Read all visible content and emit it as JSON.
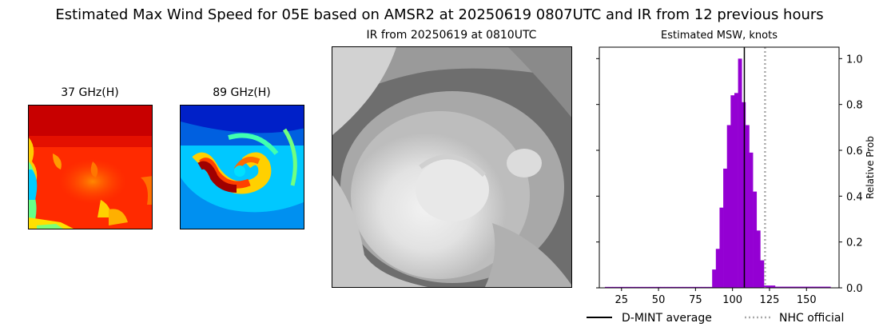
{
  "main_title": "Estimated Max Wind Speed for 05E based on AMSR2 at 20250619 0807UTC and IR from 12 previous hours",
  "panels": {
    "ghz37_title": "37 GHz(H)",
    "ghz89_title": "89 GHz(H)",
    "ir_title": "IR from 20250619 at 0810UTC"
  },
  "colors": {
    "bar": "#9400D3",
    "mean_line": "#000000",
    "nhc_line": "#a9a9a9"
  },
  "chart_data": {
    "type": "bar",
    "title": "Estimated MSW, knots",
    "ylabel": "Relative Prob",
    "xlim": [
      10,
      172
    ],
    "ylim": [
      0,
      1.05
    ],
    "xticks": [
      25,
      50,
      75,
      100,
      125,
      150
    ],
    "yticks": [
      0.0,
      0.2,
      0.4,
      0.6,
      0.8,
      1.0
    ],
    "ytick_labels": [
      "0.0",
      "0.2",
      "0.4",
      "0.6",
      "0.8",
      "1.0"
    ],
    "yaxis_position": "right",
    "bin_width": 2.5,
    "bins": [
      {
        "x": 15.0,
        "value": 0.004
      },
      {
        "x": 17.5,
        "value": 0.004
      },
      {
        "x": 20.0,
        "value": 0.004
      },
      {
        "x": 22.5,
        "value": 0.004
      },
      {
        "x": 25.0,
        "value": 0.004
      },
      {
        "x": 27.5,
        "value": 0.004
      },
      {
        "x": 30.0,
        "value": 0.004
      },
      {
        "x": 32.5,
        "value": 0.004
      },
      {
        "x": 35.0,
        "value": 0.004
      },
      {
        "x": 37.5,
        "value": 0.004
      },
      {
        "x": 40.0,
        "value": 0.004
      },
      {
        "x": 42.5,
        "value": 0.004
      },
      {
        "x": 45.0,
        "value": 0.004
      },
      {
        "x": 47.5,
        "value": 0.004
      },
      {
        "x": 50.0,
        "value": 0.004
      },
      {
        "x": 52.5,
        "value": 0.004
      },
      {
        "x": 55.0,
        "value": 0.004
      },
      {
        "x": 57.5,
        "value": 0.004
      },
      {
        "x": 60.0,
        "value": 0.004
      },
      {
        "x": 62.5,
        "value": 0.004
      },
      {
        "x": 65.0,
        "value": 0.004
      },
      {
        "x": 67.5,
        "value": 0.004
      },
      {
        "x": 70.0,
        "value": 0.004
      },
      {
        "x": 72.5,
        "value": 0.004
      },
      {
        "x": 75.0,
        "value": 0.004
      },
      {
        "x": 77.5,
        "value": 0.004
      },
      {
        "x": 80.0,
        "value": 0.004
      },
      {
        "x": 82.5,
        "value": 0.004
      },
      {
        "x": 85.0,
        "value": 0.004
      },
      {
        "x": 87.5,
        "value": 0.08
      },
      {
        "x": 90.0,
        "value": 0.17
      },
      {
        "x": 92.5,
        "value": 0.35
      },
      {
        "x": 95.0,
        "value": 0.52
      },
      {
        "x": 97.5,
        "value": 0.71
      },
      {
        "x": 100.0,
        "value": 0.84
      },
      {
        "x": 102.5,
        "value": 0.85
      },
      {
        "x": 105.0,
        "value": 1.0
      },
      {
        "x": 107.5,
        "value": 0.81
      },
      {
        "x": 110.0,
        "value": 0.71
      },
      {
        "x": 112.5,
        "value": 0.59
      },
      {
        "x": 115.0,
        "value": 0.42
      },
      {
        "x": 117.5,
        "value": 0.25
      },
      {
        "x": 120.0,
        "value": 0.12
      },
      {
        "x": 122.5,
        "value": 0.01
      },
      {
        "x": 125.0,
        "value": 0.01
      },
      {
        "x": 127.5,
        "value": 0.01
      },
      {
        "x": 130.0,
        "value": 0.005
      },
      {
        "x": 132.5,
        "value": 0.005
      },
      {
        "x": 135.0,
        "value": 0.005
      },
      {
        "x": 137.5,
        "value": 0.005
      },
      {
        "x": 140.0,
        "value": 0.005
      },
      {
        "x": 142.5,
        "value": 0.005
      },
      {
        "x": 145.0,
        "value": 0.005
      },
      {
        "x": 147.5,
        "value": 0.005
      },
      {
        "x": 150.0,
        "value": 0.005
      },
      {
        "x": 152.5,
        "value": 0.005
      },
      {
        "x": 155.0,
        "value": 0.005
      },
      {
        "x": 157.5,
        "value": 0.005
      },
      {
        "x": 160.0,
        "value": 0.005
      },
      {
        "x": 162.5,
        "value": 0.005
      },
      {
        "x": 165.0,
        "value": 0.005
      }
    ],
    "dmint_average": 108,
    "nhc_official": 122,
    "legend": [
      {
        "label": "D-MINT average",
        "style": "solid"
      },
      {
        "label": "NHC official",
        "style": "dotted"
      }
    ],
    "legend_position": "bottom"
  }
}
